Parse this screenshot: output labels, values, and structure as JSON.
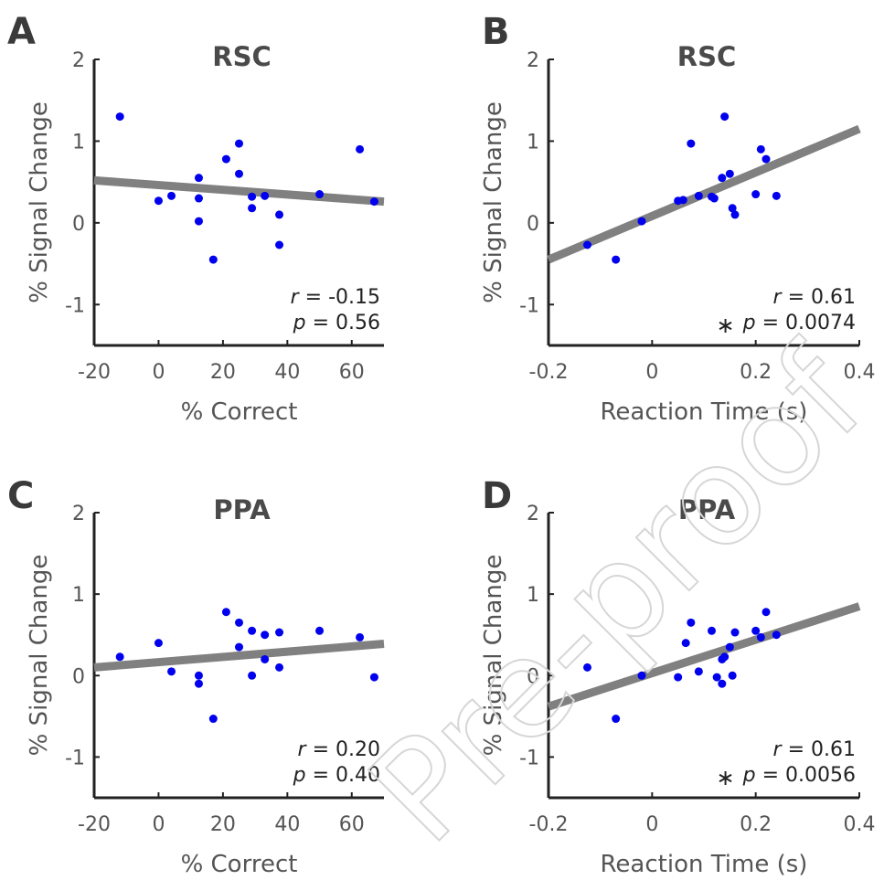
{
  "watermark": "Pre-proof",
  "chart_data": [
    {
      "type": "scatter",
      "panel": "A",
      "title": "RSC",
      "xlabel": "% Correct",
      "ylabel": "% Signal Change",
      "xlim": [
        -20,
        70
      ],
      "ylim": [
        -1.5,
        2
      ],
      "xticks": [
        -20,
        0,
        20,
        40,
        60
      ],
      "yticks": [
        -1,
        0,
        1,
        2
      ],
      "point_color": "#0000ee",
      "line_color": "#808080",
      "points": [
        {
          "x": -12,
          "y": 1.3
        },
        {
          "x": 0,
          "y": 0.27
        },
        {
          "x": 4,
          "y": 0.33
        },
        {
          "x": 12.5,
          "y": 0.55
        },
        {
          "x": 12.5,
          "y": 0.3
        },
        {
          "x": 12.5,
          "y": 0.02
        },
        {
          "x": 17,
          "y": -0.45
        },
        {
          "x": 21,
          "y": 0.78
        },
        {
          "x": 25,
          "y": 0.97
        },
        {
          "x": 25,
          "y": 0.6
        },
        {
          "x": 29,
          "y": 0.32
        },
        {
          "x": 29,
          "y": 0.18
        },
        {
          "x": 33,
          "y": 0.33
        },
        {
          "x": 37.5,
          "y": 0.1
        },
        {
          "x": 37.5,
          "y": -0.27
        },
        {
          "x": 50,
          "y": 0.35
        },
        {
          "x": 62.5,
          "y": 0.9
        },
        {
          "x": 67,
          "y": 0.26
        }
      ],
      "fit": {
        "x": [
          -20,
          70
        ],
        "y": [
          0.52,
          0.26
        ]
      },
      "stats": {
        "r": "-0.15",
        "p": "0.56",
        "significant": false,
        "r_label": "r",
        "p_label": "p",
        "r_text": " = -0.15",
        "p_text": " = 0.56",
        "star": ""
      }
    },
    {
      "type": "scatter",
      "panel": "B",
      "title": "RSC",
      "xlabel": "Reaction Time (s)",
      "ylabel": "% Signal Change",
      "xlim": [
        -0.2,
        0.4
      ],
      "ylim": [
        -1.5,
        2
      ],
      "xticks": [
        -0.2,
        0,
        0.2,
        0.4
      ],
      "xtick_labels": [
        "-0.2",
        "0",
        "0.2",
        "0.4"
      ],
      "yticks": [
        -1,
        0,
        1,
        2
      ],
      "point_color": "#0000ee",
      "line_color": "#808080",
      "points": [
        {
          "x": -0.125,
          "y": -0.27
        },
        {
          "x": -0.07,
          "y": -0.45
        },
        {
          "x": -0.02,
          "y": 0.02
        },
        {
          "x": 0.05,
          "y": 0.27
        },
        {
          "x": 0.06,
          "y": 0.28
        },
        {
          "x": 0.075,
          "y": 0.97
        },
        {
          "x": 0.09,
          "y": 0.33
        },
        {
          "x": 0.115,
          "y": 0.32
        },
        {
          "x": 0.12,
          "y": 0.3
        },
        {
          "x": 0.135,
          "y": 0.55
        },
        {
          "x": 0.14,
          "y": 1.3
        },
        {
          "x": 0.15,
          "y": 0.6
        },
        {
          "x": 0.155,
          "y": 0.18
        },
        {
          "x": 0.16,
          "y": 0.1
        },
        {
          "x": 0.2,
          "y": 0.35
        },
        {
          "x": 0.21,
          "y": 0.9
        },
        {
          "x": 0.22,
          "y": 0.78
        },
        {
          "x": 0.24,
          "y": 0.33
        }
      ],
      "fit": {
        "x": [
          -0.2,
          0.4
        ],
        "y": [
          -0.45,
          1.15
        ]
      },
      "stats": {
        "r": "0.61",
        "p": "0.0074",
        "significant": true,
        "r_label": "r",
        "p_label": "p",
        "r_text": " = 0.61",
        "p_text": " = 0.0074",
        "star": "∗"
      }
    },
    {
      "type": "scatter",
      "panel": "C",
      "title": "PPA",
      "xlabel": "% Correct",
      "ylabel": "% Signal Change",
      "xlim": [
        -20,
        70
      ],
      "ylim": [
        -1.5,
        2
      ],
      "xticks": [
        -20,
        0,
        20,
        40,
        60
      ],
      "yticks": [
        -1,
        0,
        1,
        2
      ],
      "point_color": "#0000ee",
      "line_color": "#808080",
      "points": [
        {
          "x": -12,
          "y": 0.23
        },
        {
          "x": 0,
          "y": 0.4
        },
        {
          "x": 4,
          "y": 0.05
        },
        {
          "x": 12.5,
          "y": 0.0
        },
        {
          "x": 12.5,
          "y": -0.1
        },
        {
          "x": 17,
          "y": -0.53
        },
        {
          "x": 21,
          "y": 0.78
        },
        {
          "x": 25,
          "y": 0.65
        },
        {
          "x": 25,
          "y": 0.35
        },
        {
          "x": 29,
          "y": 0.55
        },
        {
          "x": 29,
          "y": 0.0
        },
        {
          "x": 33,
          "y": 0.5
        },
        {
          "x": 33,
          "y": 0.2
        },
        {
          "x": 37.5,
          "y": 0.53
        },
        {
          "x": 37.5,
          "y": 0.1
        },
        {
          "x": 50,
          "y": 0.55
        },
        {
          "x": 62.5,
          "y": 0.47
        },
        {
          "x": 67,
          "y": -0.02
        }
      ],
      "fit": {
        "x": [
          -20,
          70
        ],
        "y": [
          0.1,
          0.39
        ]
      },
      "stats": {
        "r": "0.20",
        "p": "0.40",
        "significant": false,
        "r_label": "r",
        "p_label": "p",
        "r_text": " = 0.20",
        "p_text": " = 0.40",
        "star": ""
      }
    },
    {
      "type": "scatter",
      "panel": "D",
      "title": "PPA",
      "xlabel": "Reaction Time (s)",
      "ylabel": "% Signal Change",
      "xlim": [
        -0.2,
        0.4
      ],
      "ylim": [
        -1.5,
        2
      ],
      "xticks": [
        -0.2,
        0,
        0.2,
        0.4
      ],
      "xtick_labels": [
        "-0.2",
        "0",
        "0.2",
        "0.4"
      ],
      "yticks": [
        -1,
        0,
        1,
        2
      ],
      "point_color": "#0000ee",
      "line_color": "#808080",
      "points": [
        {
          "x": -0.125,
          "y": 0.1
        },
        {
          "x": -0.07,
          "y": -0.53
        },
        {
          "x": -0.02,
          "y": 0.0
        },
        {
          "x": 0.05,
          "y": -0.02
        },
        {
          "x": 0.065,
          "y": 0.4
        },
        {
          "x": 0.075,
          "y": 0.65
        },
        {
          "x": 0.09,
          "y": 0.05
        },
        {
          "x": 0.115,
          "y": 0.55
        },
        {
          "x": 0.125,
          "y": -0.02
        },
        {
          "x": 0.135,
          "y": 0.2
        },
        {
          "x": 0.135,
          "y": -0.1
        },
        {
          "x": 0.14,
          "y": 0.23
        },
        {
          "x": 0.15,
          "y": 0.35
        },
        {
          "x": 0.155,
          "y": 0.0
        },
        {
          "x": 0.16,
          "y": 0.53
        },
        {
          "x": 0.2,
          "y": 0.55
        },
        {
          "x": 0.21,
          "y": 0.47
        },
        {
          "x": 0.22,
          "y": 0.78
        },
        {
          "x": 0.24,
          "y": 0.5
        }
      ],
      "fit": {
        "x": [
          -0.2,
          0.4
        ],
        "y": [
          -0.38,
          0.85
        ]
      },
      "stats": {
        "r": "0.61",
        "p": "0.0056",
        "significant": true,
        "r_label": "r",
        "p_label": "p",
        "r_text": " = 0.61",
        "p_text": " = 0.0056",
        "star": "∗"
      }
    }
  ]
}
